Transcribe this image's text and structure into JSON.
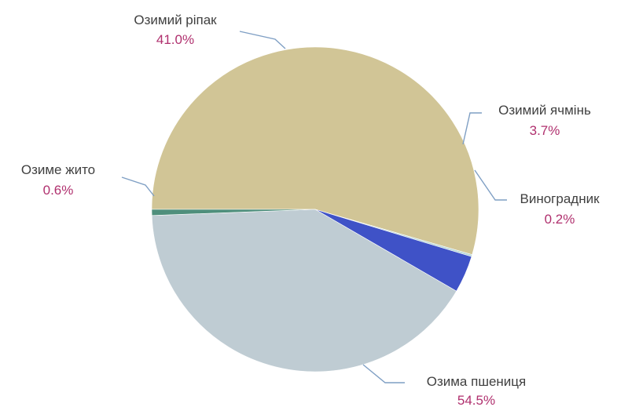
{
  "chart_data": {
    "type": "pie",
    "start_angle_deg": 180,
    "direction": "counterclockwise",
    "slices": [
      {
        "label": "Озима пшениця",
        "value": 54.5,
        "value_label": "54.5%",
        "color": "#d1c596"
      },
      {
        "label": "Виноградник",
        "value": 0.2,
        "value_label": "0.2%",
        "color": "#b8d7d6"
      },
      {
        "label": "Озимий ячмінь",
        "value": 3.7,
        "value_label": "3.7%",
        "color": "#3f52c7"
      },
      {
        "label": "Озимий ріпак",
        "value": 41.0,
        "value_label": "41.0%",
        "color": "#bfccd3"
      },
      {
        "label": "Озиме жито",
        "value": 0.6,
        "value_label": "0.6%",
        "color": "#4f8f7c"
      }
    ]
  }
}
